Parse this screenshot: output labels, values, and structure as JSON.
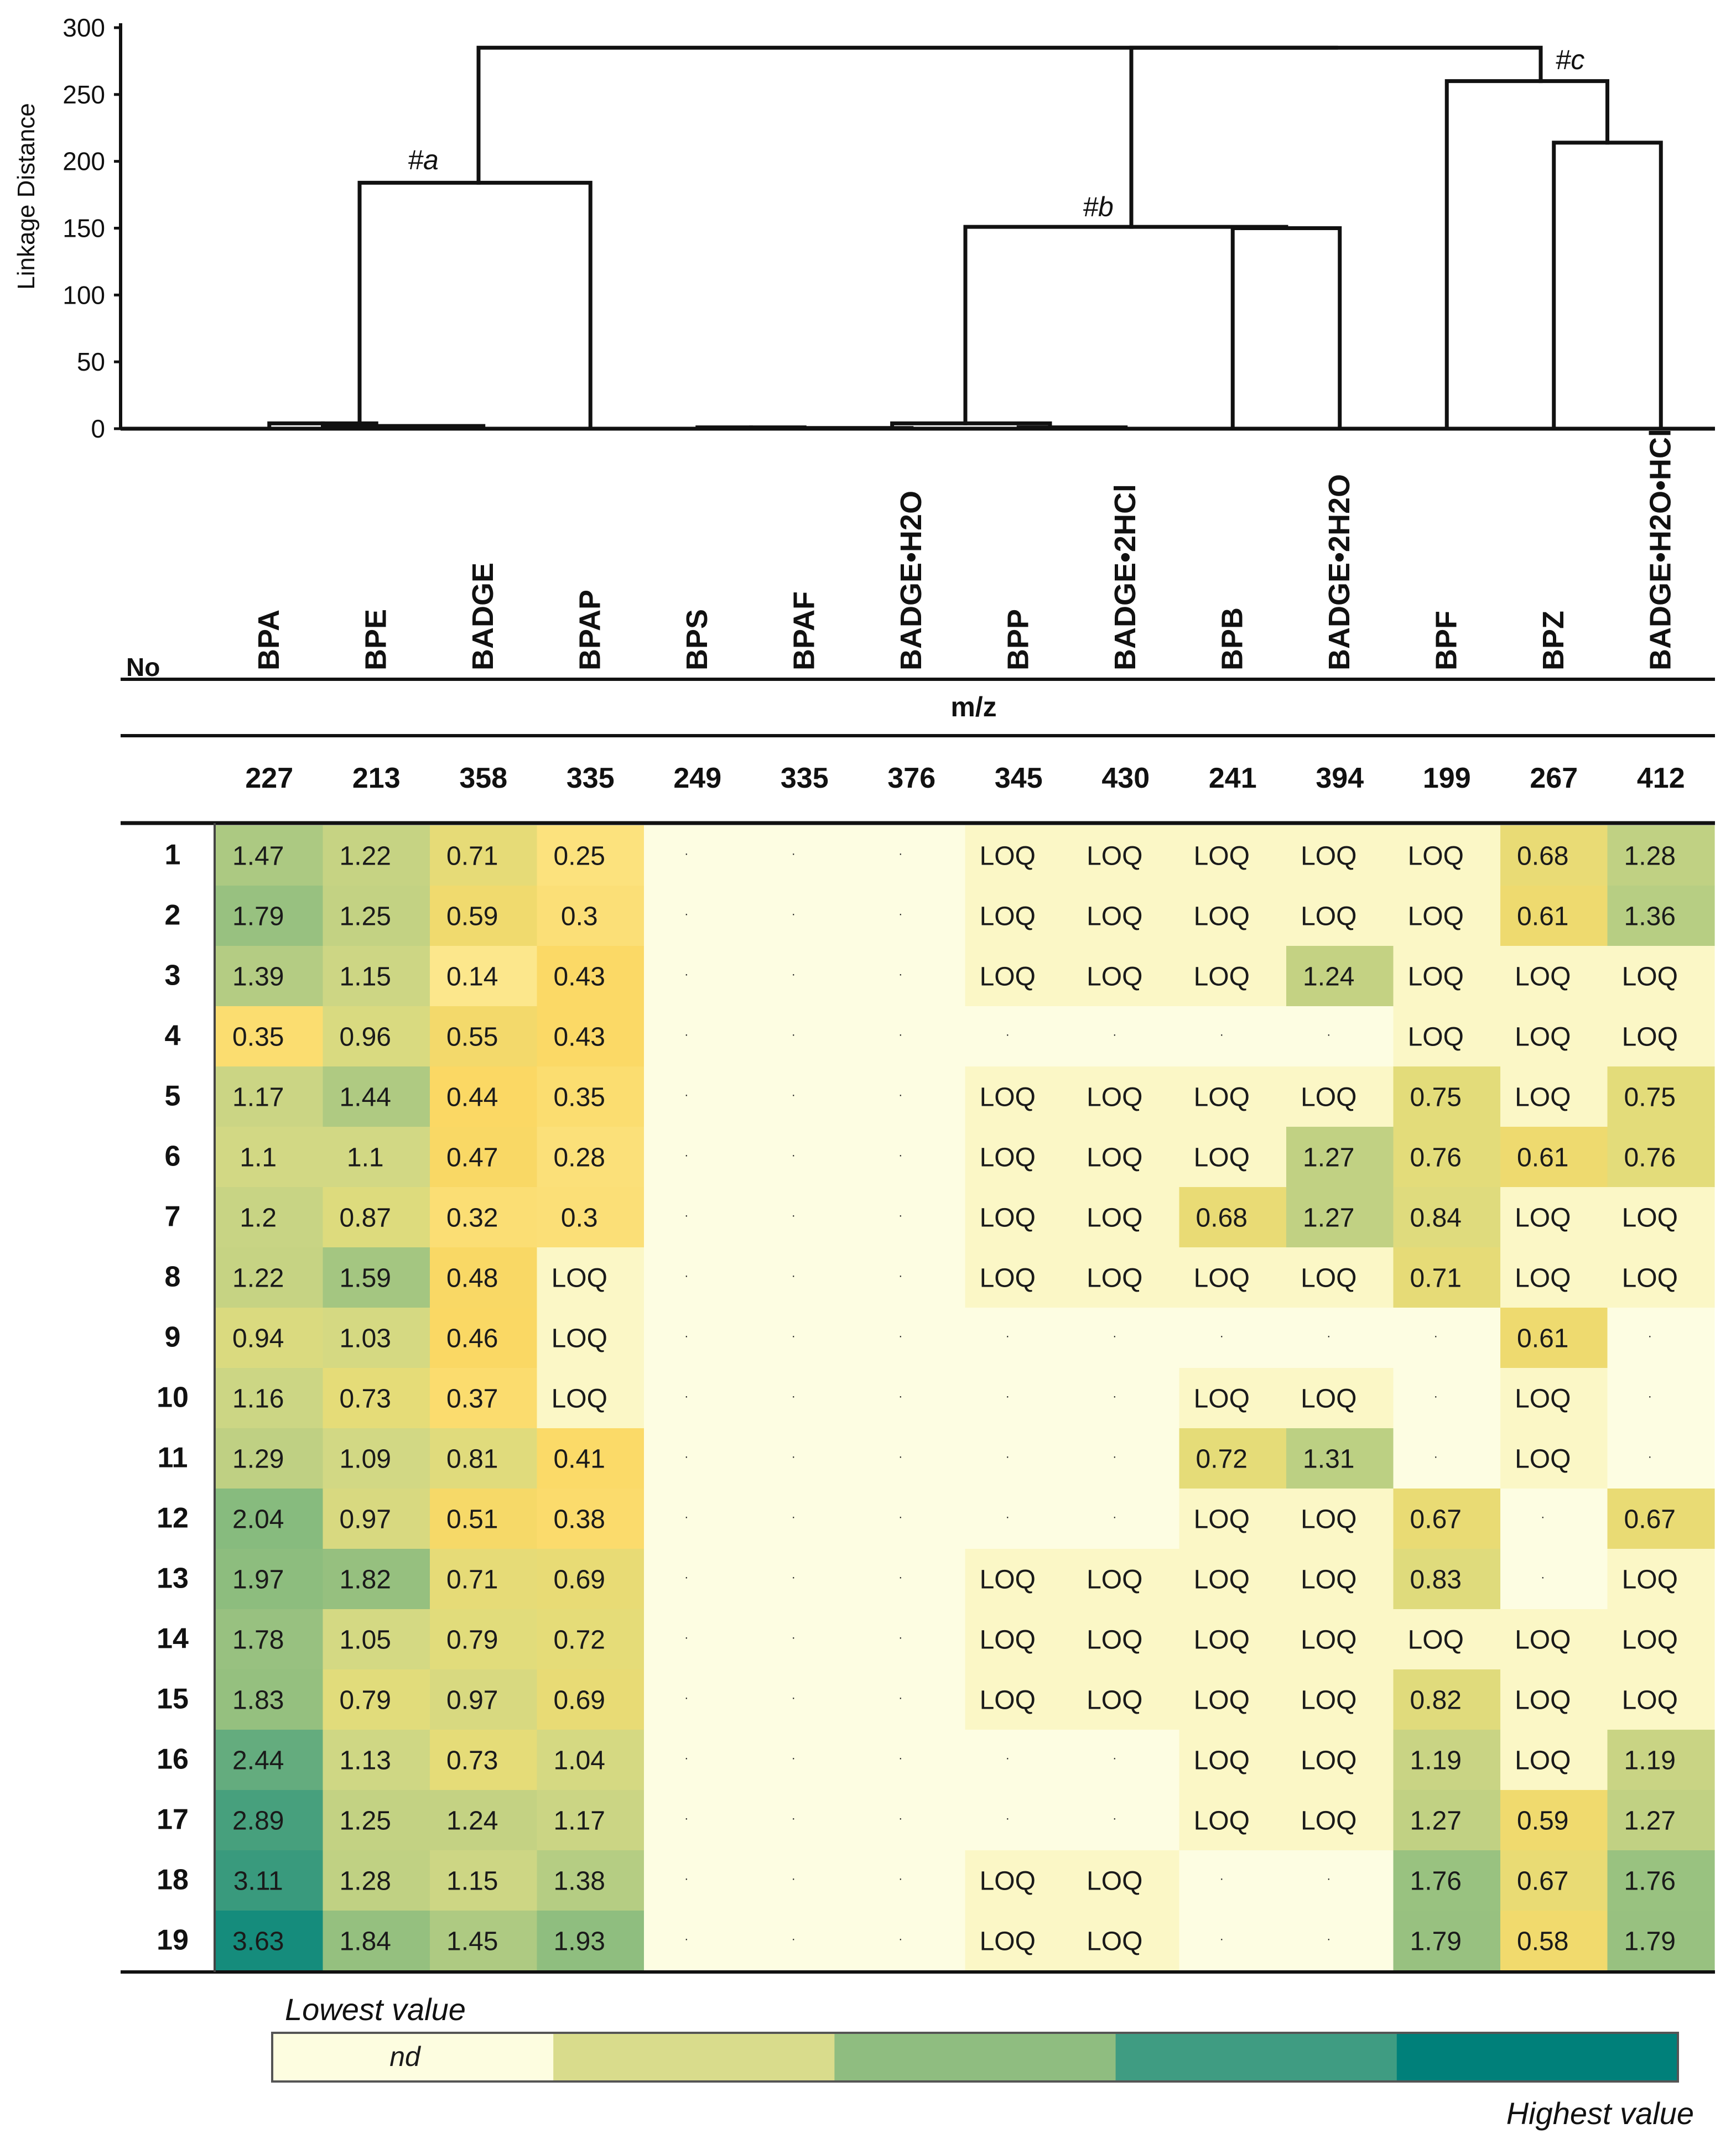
{
  "chart_data": {
    "type": "heatmap",
    "title": "",
    "dendrogram": {
      "ylabel": "Linkage Distance",
      "ylim": [
        0,
        300
      ],
      "yticks": [
        "0",
        "50",
        "100",
        "150",
        "200",
        "250",
        "300"
      ],
      "cluster_labels": [
        "#a",
        "#b",
        "#c"
      ]
    },
    "row_header_label": "No",
    "mz_label": "m/z",
    "columns": [
      {
        "name": "BPA",
        "mz": "227"
      },
      {
        "name": "BPE",
        "mz": "213"
      },
      {
        "name": "BADGE",
        "mz": "358"
      },
      {
        "name": "BPAP",
        "mz": "335"
      },
      {
        "name": "BPS",
        "mz": "249"
      },
      {
        "name": "BPAF",
        "mz": "335"
      },
      {
        "name": "BADGE•H2O",
        "mz": "376"
      },
      {
        "name": "BPP",
        "mz": "345"
      },
      {
        "name": "BADGE•2HCl",
        "mz": "430"
      },
      {
        "name": "BPB",
        "mz": "241"
      },
      {
        "name": "BADGE•2H2O",
        "mz": "394"
      },
      {
        "name": "BPF",
        "mz": "199"
      },
      {
        "name": "BPZ",
        "mz": "267"
      },
      {
        "name": "BADGE•H2O•HCl",
        "mz": "412"
      }
    ],
    "rows": [
      {
        "no": "1",
        "values": [
          "1.47",
          "1.22",
          "0.71",
          "0.25",
          "·",
          "·",
          "·",
          "LOQ",
          "LOQ",
          "LOQ",
          "LOQ",
          "LOQ",
          "0.68",
          "1.28"
        ]
      },
      {
        "no": "2",
        "values": [
          "1.79",
          "1.25",
          "0.59",
          "0.3",
          "·",
          "·",
          "·",
          "LOQ",
          "LOQ",
          "LOQ",
          "LOQ",
          "LOQ",
          "0.61",
          "1.36"
        ]
      },
      {
        "no": "3",
        "values": [
          "1.39",
          "1.15",
          "0.14",
          "0.43",
          "·",
          "·",
          "·",
          "LOQ",
          "LOQ",
          "LOQ",
          "1.24",
          "LOQ",
          "LOQ",
          "LOQ"
        ]
      },
      {
        "no": "4",
        "values": [
          "0.35",
          "0.96",
          "0.55",
          "0.43",
          "·",
          "·",
          "·",
          "·",
          "·",
          "·",
          "·",
          "LOQ",
          "LOQ",
          "LOQ"
        ]
      },
      {
        "no": "5",
        "values": [
          "1.17",
          "1.44",
          "0.44",
          "0.35",
          "·",
          "·",
          "·",
          "LOQ",
          "LOQ",
          "LOQ",
          "LOQ",
          "0.75",
          "LOQ",
          "0.75"
        ]
      },
      {
        "no": "6",
        "values": [
          "1.1",
          "1.1",
          "0.47",
          "0.28",
          "·",
          "·",
          "·",
          "LOQ",
          "LOQ",
          "LOQ",
          "1.27",
          "0.76",
          "0.61",
          "0.76"
        ]
      },
      {
        "no": "7",
        "values": [
          "1.2",
          "0.87",
          "0.32",
          "0.3",
          "·",
          "·",
          "·",
          "LOQ",
          "LOQ",
          "0.68",
          "1.27",
          "0.84",
          "LOQ",
          "LOQ"
        ]
      },
      {
        "no": "8",
        "values": [
          "1.22",
          "1.59",
          "0.48",
          "LOQ",
          "·",
          "·",
          "·",
          "LOQ",
          "LOQ",
          "LOQ",
          "LOQ",
          "0.71",
          "LOQ",
          "LOQ"
        ]
      },
      {
        "no": "9",
        "values": [
          "0.94",
          "1.03",
          "0.46",
          "LOQ",
          "·",
          "·",
          "·",
          "·",
          "·",
          "·",
          "·",
          "·",
          "0.61",
          "·"
        ]
      },
      {
        "no": "10",
        "values": [
          "1.16",
          "0.73",
          "0.37",
          "LOQ",
          "·",
          "·",
          "·",
          "·",
          "·",
          "LOQ",
          "LOQ",
          "·",
          "LOQ",
          "·"
        ]
      },
      {
        "no": "11",
        "values": [
          "1.29",
          "1.09",
          "0.81",
          "0.41",
          "·",
          "·",
          "·",
          "·",
          "·",
          "0.72",
          "1.31",
          "·",
          "LOQ",
          "·"
        ]
      },
      {
        "no": "12",
        "values": [
          "2.04",
          "0.97",
          "0.51",
          "0.38",
          "·",
          "·",
          "·",
          "·",
          "·",
          "LOQ",
          "LOQ",
          "0.67",
          "·",
          "0.67"
        ]
      },
      {
        "no": "13",
        "values": [
          "1.97",
          "1.82",
          "0.71",
          "0.69",
          "·",
          "·",
          "·",
          "LOQ",
          "LOQ",
          "LOQ",
          "LOQ",
          "0.83",
          "·",
          "LOQ"
        ]
      },
      {
        "no": "14",
        "values": [
          "1.78",
          "1.05",
          "0.79",
          "0.72",
          "·",
          "·",
          "·",
          "LOQ",
          "LOQ",
          "LOQ",
          "LOQ",
          "LOQ",
          "LOQ",
          "LOQ"
        ]
      },
      {
        "no": "15",
        "values": [
          "1.83",
          "0.79",
          "0.97",
          "0.69",
          "·",
          "·",
          "·",
          "LOQ",
          "LOQ",
          "LOQ",
          "LOQ",
          "0.82",
          "LOQ",
          "LOQ"
        ]
      },
      {
        "no": "16",
        "values": [
          "2.44",
          "1.13",
          "0.73",
          "1.04",
          "·",
          "·",
          "·",
          "·",
          "·",
          "LOQ",
          "LOQ",
          "1.19",
          "LOQ",
          "1.19"
        ]
      },
      {
        "no": "17",
        "values": [
          "2.89",
          "1.25",
          "1.24",
          "1.17",
          "·",
          "·",
          "·",
          "·",
          "·",
          "LOQ",
          "LOQ",
          "1.27",
          "0.59",
          "1.27"
        ]
      },
      {
        "no": "18",
        "values": [
          "3.11",
          "1.28",
          "1.15",
          "1.38",
          "·",
          "·",
          "·",
          "LOQ",
          "LOQ",
          "·",
          "·",
          "1.76",
          "0.67",
          "1.76"
        ]
      },
      {
        "no": "19",
        "values": [
          "3.63",
          "1.84",
          "1.45",
          "1.93",
          "·",
          "·",
          "·",
          "LOQ",
          "LOQ",
          "·",
          "·",
          "1.79",
          "0.58",
          "1.79"
        ]
      }
    ],
    "legend": {
      "lowest_label": "Lowest value",
      "highest_label": "Highest value",
      "nd_label": "nd",
      "colors": [
        "#fdfde0",
        "#d9dc8c",
        "#8fbd80",
        "#3f9c82",
        "#00807a"
      ]
    },
    "palette": {
      "nd": "#fdfde2",
      "loq": "#fbf7c6",
      "scale": [
        {
          "v": 0.1,
          "c": "#fce991"
        },
        {
          "v": 0.45,
          "c": "#fbd863"
        },
        {
          "v": 0.75,
          "c": "#e3dc7a"
        },
        {
          "v": 1.1,
          "c": "#d2d884"
        },
        {
          "v": 1.5,
          "c": "#a9c882"
        },
        {
          "v": 2.0,
          "c": "#8bbc7e"
        },
        {
          "v": 2.5,
          "c": "#5faa7e"
        },
        {
          "v": 3.1,
          "c": "#3a9a7d"
        },
        {
          "v": 3.7,
          "c": "#108a7c"
        }
      ]
    }
  }
}
